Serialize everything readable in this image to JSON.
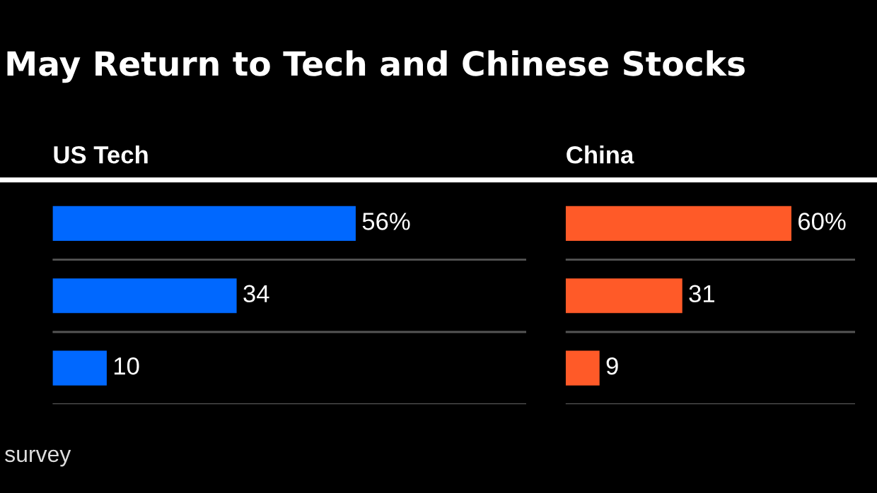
{
  "chart_data": [
    {
      "type": "other",
      "title": "May Return to Tech and Chinese Stocks",
      "annotations": [
        "survey"
      ]
    },
    {
      "type": "bar",
      "orientation": "horizontal",
      "title": "US Tech",
      "categories": [
        null,
        null,
        null
      ],
      "values": [
        56,
        34,
        10
      ],
      "color": "#0068ff",
      "value_labels": [
        "56%",
        "34",
        "10"
      ],
      "grid": "y"
    },
    {
      "type": "bar",
      "orientation": "horizontal",
      "title": "China",
      "categories": [
        null,
        null,
        null
      ],
      "values": [
        60,
        31,
        9
      ],
      "color": "#ff5a28",
      "value_labels": [
        "60%",
        "31",
        "9"
      ],
      "grid": "y"
    }
  ]
}
